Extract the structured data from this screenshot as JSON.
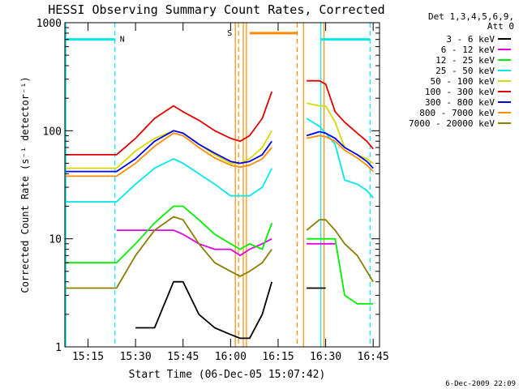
{
  "chart_data": {
    "type": "line",
    "title": "HESSI Observing Summary Count Rates, Corrected",
    "xlabel": "Start Time (06-Dec-05 15:07:42)",
    "ylabel": "Corrected Count Rate (s⁻¹ detector⁻¹)",
    "x_unit": "UT (HH:MM)",
    "xlim": [
      "15:07:42",
      "16:47"
    ],
    "x_ticks": [
      "15:15",
      "15:30",
      "15:45",
      "16:00",
      "16:15",
      "16:30",
      "16:45"
    ],
    "y_scale": "log",
    "ylim": [
      1,
      1000
    ],
    "y_ticks": [
      {
        "value": 1,
        "label": "1"
      },
      {
        "value": 10,
        "label": "10"
      },
      {
        "value": 100,
        "label": "100"
      },
      {
        "value": 1000,
        "label": "1000"
      }
    ],
    "legend": {
      "placement": "right",
      "header": [
        "Det 1,3,4,5,6,9,",
        "Att 0"
      ],
      "entries": [
        {
          "label": "3 - 6 keV",
          "color": "#000000"
        },
        {
          "label": "6 - 12 keV",
          "color": "#e000e0"
        },
        {
          "label": "12 - 25 keV",
          "color": "#00ee00"
        },
        {
          "label": "25 - 50 keV",
          "color": "#00e8e8"
        },
        {
          "label": "50 - 100 keV",
          "color": "#d8d800"
        },
        {
          "label": "100 - 300 keV",
          "color": "#e00000"
        },
        {
          "label": "300 - 800 keV",
          "color": "#0000ee"
        },
        {
          "label": "800 - 7000 keV",
          "color": "#ff8c00"
        },
        {
          "label": "7000 - 20000 keV",
          "color": "#8b7d00"
        }
      ]
    },
    "flags": [
      {
        "label": "N",
        "color": "#00e8e8"
      },
      {
        "label": "S",
        "color": "#ff8c00"
      }
    ],
    "footer_date": "6-Dec-2009 22:09",
    "segments": [
      {
        "x": [
          "15:08",
          "15:24",
          "15:30",
          "15:36",
          "15:42",
          "15:45",
          "15:50",
          "15:55",
          "16:00",
          "16:03",
          "16:06",
          "16:10",
          "16:13"
        ],
        "series": [
          {
            "name": "3 - 6 keV",
            "values": [
              null,
              null,
              1.5,
              1.5,
              4,
              4,
              2,
              1.5,
              1.3,
              1.2,
              1.2,
              2,
              4
            ]
          },
          {
            "name": "6 - 12 keV",
            "values": [
              null,
              12,
              12,
              12,
              12,
              11,
              9,
              8,
              8,
              7,
              8,
              9,
              10
            ]
          },
          {
            "name": "12 - 25 keV",
            "values": [
              6,
              6,
              9,
              14,
              20,
              20,
              15,
              11,
              9,
              8,
              9,
              8,
              14
            ]
          },
          {
            "name": "25 - 50 keV",
            "values": [
              22,
              22,
              32,
              45,
              55,
              50,
              40,
              32,
              25,
              25,
              25,
              30,
              45
            ]
          },
          {
            "name": "50 - 100 keV",
            "values": [
              45,
              45,
              65,
              85,
              100,
              95,
              75,
              60,
              50,
              50,
              55,
              70,
              100
            ]
          },
          {
            "name": "100 - 300 keV",
            "values": [
              60,
              60,
              85,
              130,
              170,
              150,
              125,
              100,
              85,
              80,
              90,
              130,
              230
            ]
          },
          {
            "name": "300 - 800 keV",
            "values": [
              42,
              42,
              55,
              80,
              100,
              95,
              75,
              62,
              52,
              50,
              52,
              60,
              80
            ]
          },
          {
            "name": "800 - 7000 keV",
            "values": [
              38,
              38,
              50,
              72,
              95,
              90,
              70,
              56,
              48,
              46,
              48,
              55,
              70
            ]
          },
          {
            "name": "7000 - 20000 keV",
            "values": [
              3.5,
              3.5,
              7,
              12,
              16,
              15,
              9,
              6,
              5,
              4.5,
              5,
              6,
              8
            ]
          }
        ]
      },
      {
        "x": [
          "16:24",
          "16:28",
          "16:30",
          "16:33",
          "16:36",
          "16:40",
          "16:43",
          "16:45"
        ],
        "series": [
          {
            "name": "3 - 6 keV",
            "values": [
              3.5,
              3.5,
              3.5,
              null,
              null,
              null,
              null,
              null
            ]
          },
          {
            "name": "6 - 12 keV",
            "values": [
              9,
              9,
              9,
              9,
              null,
              null,
              null,
              null
            ]
          },
          {
            "name": "12 - 25 keV",
            "values": [
              10,
              10,
              10,
              10,
              3,
              2.5,
              2.5,
              2.5
            ]
          },
          {
            "name": "25 - 50 keV",
            "values": [
              130,
              110,
              95,
              75,
              35,
              32,
              28,
              24
            ]
          },
          {
            "name": "50 - 100 keV",
            "values": [
              180,
              170,
              170,
              120,
              70,
              60,
              55,
              50
            ]
          },
          {
            "name": "100 - 300 keV",
            "values": [
              290,
              290,
              270,
              150,
              120,
              95,
              80,
              68
            ]
          },
          {
            "name": "300 - 800 keV",
            "values": [
              90,
              98,
              95,
              85,
              70,
              60,
              52,
              45
            ]
          },
          {
            "name": "800 - 7000 keV",
            "values": [
              85,
              90,
              88,
              80,
              66,
              56,
              48,
              42
            ]
          },
          {
            "name": "7000 - 20000 keV",
            "values": [
              12,
              15,
              15,
              12,
              9,
              7,
              5,
              4
            ]
          }
        ]
      }
    ],
    "guides": [
      {
        "time": "15:08",
        "color": "#00e8e8",
        "style": "solid"
      },
      {
        "time": "15:23:30",
        "color": "#00e8e8",
        "style": "dashed"
      },
      {
        "time": "16:01:30",
        "color": "#ff8c00",
        "style": "solid"
      },
      {
        "time": "16:02:30",
        "color": "#ff8c00",
        "style": "dashed"
      },
      {
        "time": "16:04",
        "color": "#ff8c00",
        "style": "solid"
      },
      {
        "time": "16:05",
        "color": "#ff8c00",
        "style": "solid"
      },
      {
        "time": "16:21",
        "color": "#ff8c00",
        "style": "dashed"
      },
      {
        "time": "16:23",
        "color": "#ff8c00",
        "style": "solid"
      },
      {
        "time": "16:28:30",
        "color": "#00e8e8",
        "style": "solid"
      },
      {
        "time": "16:29:30",
        "color": "#ff8c00",
        "style": "solid"
      },
      {
        "time": "16:44",
        "color": "#00e8e8",
        "style": "dashed"
      }
    ],
    "bars": [
      {
        "from": "15:08",
        "to": "15:23:30",
        "value": 700,
        "color": "#00e8e8"
      },
      {
        "from": "16:28:30",
        "to": "16:44",
        "value": 700,
        "color": "#00e8e8"
      },
      {
        "from": "16:06",
        "to": "16:21",
        "value": 800,
        "color": "#ff8c00"
      }
    ]
  }
}
